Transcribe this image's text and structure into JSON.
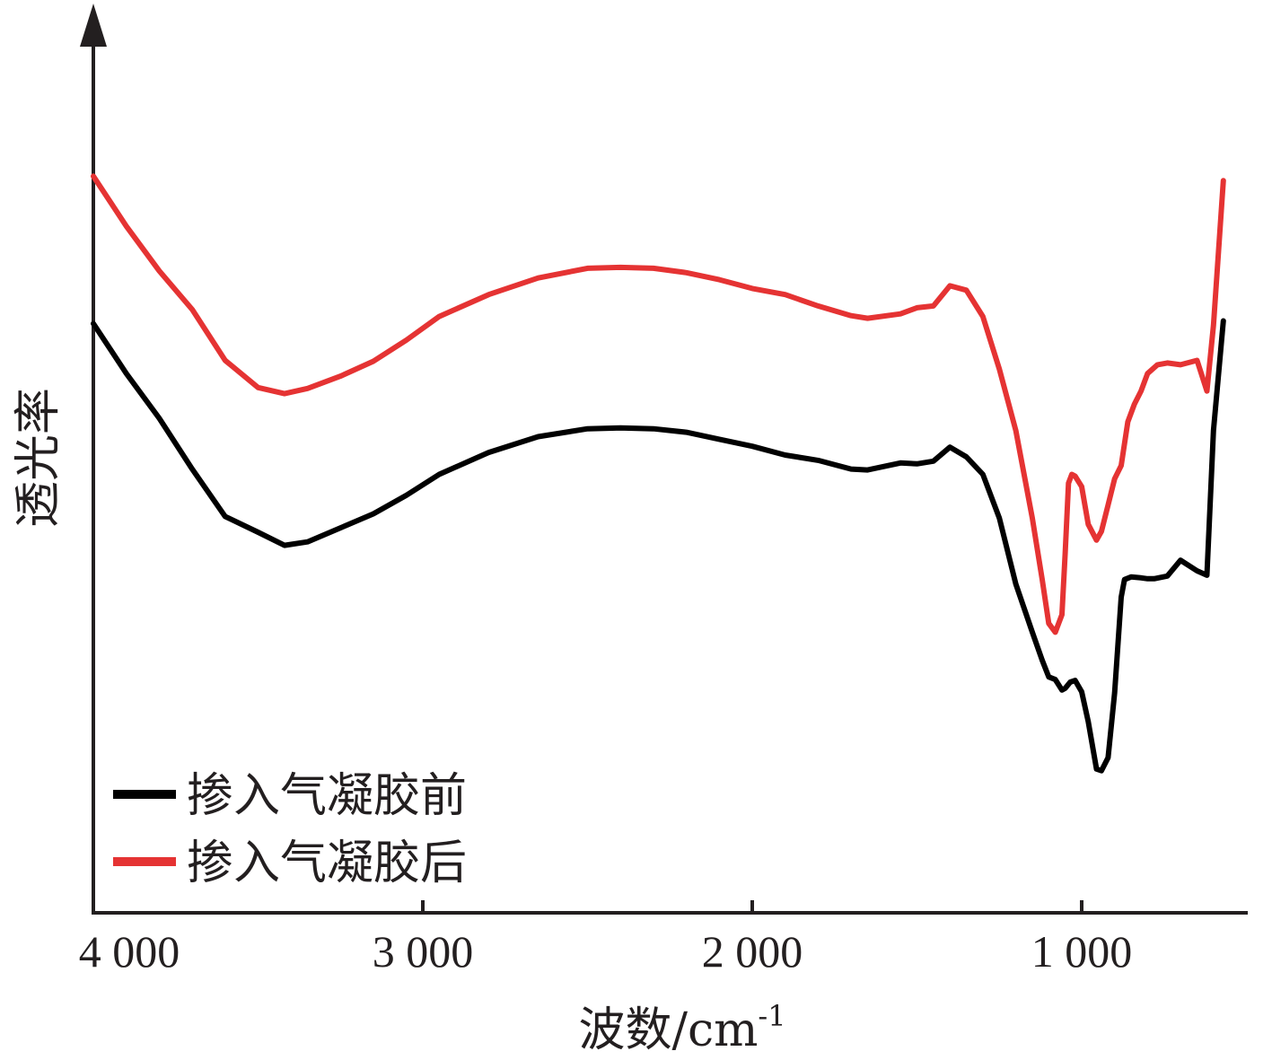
{
  "chart_data": {
    "type": "line",
    "xlabel": "波数/cm",
    "xlabel_sup": "-1",
    "ylabel": "透光率",
    "xlim": [
      4000,
      500
    ],
    "x_reversed": true,
    "ylim": [
      0,
      100
    ],
    "y_ticks_shown": false,
    "grid": false,
    "legend_position": "bottom-left",
    "x_ticks": [
      {
        "value": 4000,
        "label": "4 000"
      },
      {
        "value": 3000,
        "label": "3 000"
      },
      {
        "value": 2000,
        "label": "2 000"
      },
      {
        "value": 1000,
        "label": "1 000"
      }
    ],
    "series": [
      {
        "name": "掺入气凝胶前",
        "color": "#000000",
        "x": [
          4000,
          3900,
          3800,
          3700,
          3600,
          3500,
          3420,
          3350,
          3250,
          3150,
          3050,
          2950,
          2800,
          2650,
          2500,
          2400,
          2300,
          2200,
          2100,
          2000,
          1900,
          1800,
          1700,
          1650,
          1550,
          1500,
          1450,
          1400,
          1350,
          1300,
          1250,
          1200,
          1150,
          1120,
          1100,
          1080,
          1060,
          1050,
          1035,
          1020,
          1000,
          980,
          955,
          940,
          920,
          900,
          880,
          870,
          850,
          820,
          800,
          780,
          740,
          700,
          650,
          620,
          600,
          570
        ],
        "y": [
          67.2,
          61.5,
          56.4,
          50.6,
          45.2,
          43.4,
          41.9,
          42.3,
          43.9,
          45.5,
          47.6,
          50.0,
          52.5,
          54.3,
          55.2,
          55.3,
          55.2,
          54.8,
          54.0,
          53.2,
          52.2,
          51.6,
          50.6,
          50.5,
          51.3,
          51.2,
          51.5,
          53.1,
          52.0,
          50.0,
          45.0,
          37.5,
          32.0,
          28.8,
          26.9,
          26.6,
          25.4,
          25.6,
          26.3,
          26.5,
          25.2,
          21.8,
          16.4,
          16.2,
          17.7,
          25.1,
          36.0,
          38.0,
          38.3,
          38.2,
          38.1,
          38.1,
          38.4,
          40.2,
          39.0,
          38.5,
          55.0,
          67.5
        ]
      },
      {
        "name": "掺入气凝胶后",
        "color": "#e53333",
        "x": [
          4000,
          3900,
          3800,
          3700,
          3600,
          3500,
          3420,
          3350,
          3250,
          3150,
          3050,
          2950,
          2800,
          2650,
          2500,
          2400,
          2300,
          2200,
          2100,
          2000,
          1900,
          1800,
          1700,
          1650,
          1550,
          1500,
          1450,
          1400,
          1350,
          1300,
          1250,
          1200,
          1150,
          1120,
          1100,
          1080,
          1060,
          1050,
          1040,
          1030,
          1020,
          1000,
          980,
          955,
          940,
          920,
          900,
          880,
          860,
          840,
          820,
          800,
          770,
          740,
          700,
          650,
          620,
          600,
          570
        ],
        "y": [
          84.0,
          78.3,
          73.2,
          68.8,
          63.0,
          59.9,
          59.2,
          59.8,
          61.2,
          62.9,
          65.3,
          68.0,
          70.5,
          72.4,
          73.5,
          73.6,
          73.5,
          73.0,
          72.2,
          71.2,
          70.5,
          69.2,
          68.1,
          67.8,
          68.3,
          69.0,
          69.2,
          71.5,
          71.0,
          68.0,
          62.0,
          55.0,
          45.0,
          38.0,
          33.0,
          32.0,
          34.0,
          41.0,
          49.0,
          50.0,
          49.8,
          48.6,
          44.3,
          42.5,
          43.5,
          46.5,
          49.5,
          51.0,
          56.0,
          58.0,
          59.5,
          61.5,
          62.5,
          62.7,
          62.5,
          63.0,
          59.5,
          67.0,
          83.5
        ]
      }
    ]
  }
}
